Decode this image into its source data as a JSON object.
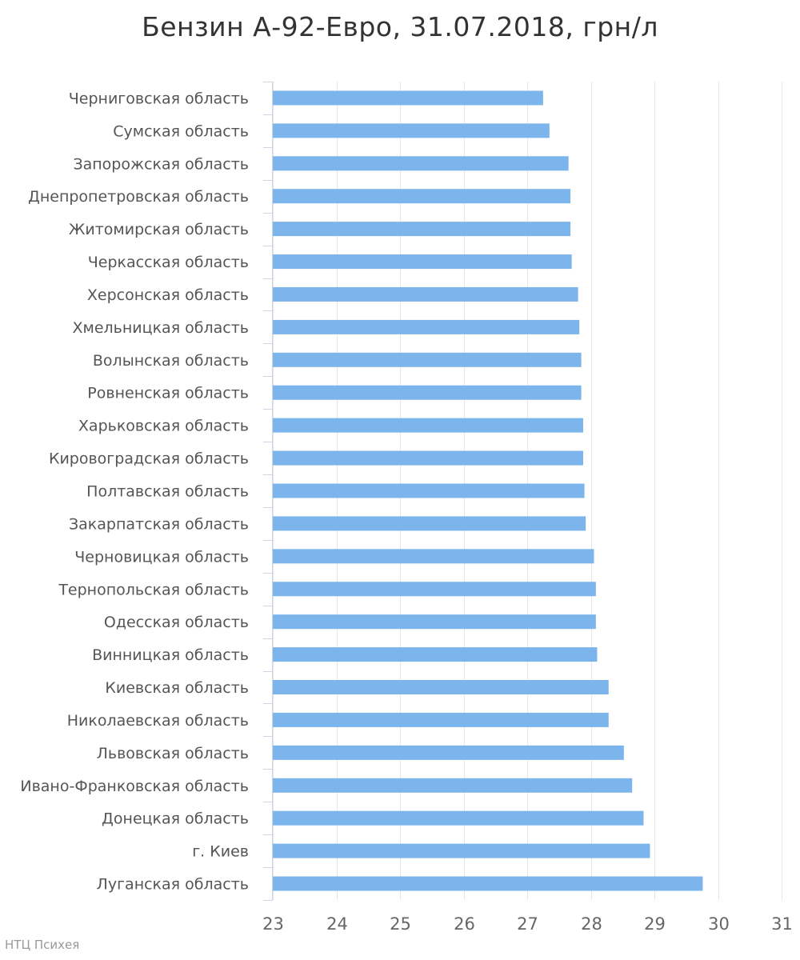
{
  "chart_data": {
    "type": "bar",
    "orientation": "horizontal",
    "title": "Бензин А-92-Евро, 31.07.2018, грн/л",
    "categories": [
      "Черниговская область",
      "Сумская область",
      "Запорожская область",
      "Днепропетровская область",
      "Житомирская область",
      "Черкасская область",
      "Херсонская область",
      "Хмельницкая область",
      "Волынская область",
      "Ровненская область",
      "Харьковская область",
      "Кировоградская область",
      "Полтавская область",
      "Закарпатская область",
      "Черновицкая область",
      "Тернопольская область",
      "Одесская область",
      "Винницкая область",
      "Киевская область",
      "Николаевская область",
      "Львовская область",
      "Ивано-Франковская область",
      "Донецкая область",
      "г. Киев",
      "Луганская область"
    ],
    "values": [
      27.25,
      27.35,
      27.65,
      27.68,
      27.68,
      27.7,
      27.8,
      27.82,
      27.85,
      27.85,
      27.88,
      27.88,
      27.9,
      27.92,
      28.05,
      28.08,
      28.08,
      28.1,
      28.28,
      28.28,
      28.52,
      28.65,
      28.83,
      28.93,
      29.76
    ],
    "xlim": [
      23,
      31
    ],
    "x_ticks": [
      "23",
      "24",
      "25",
      "26",
      "27",
      "28",
      "29",
      "30",
      "31"
    ],
    "grid": true,
    "bar_color": "#7cb5ec"
  },
  "credit": "НТЦ Психея"
}
